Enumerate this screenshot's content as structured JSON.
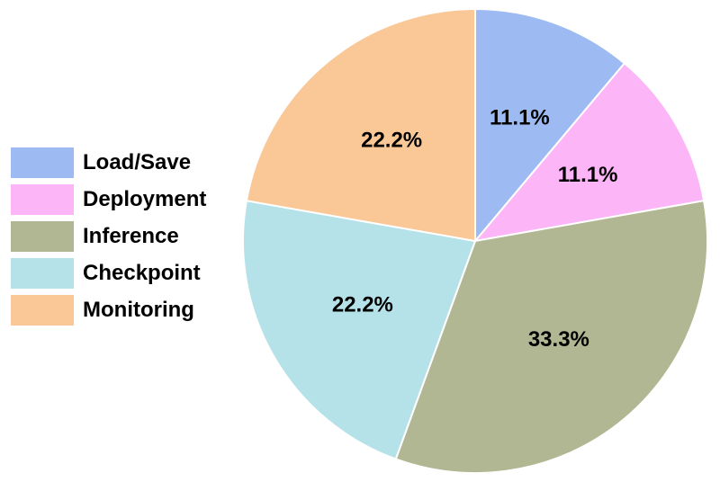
{
  "chart_data": {
    "type": "pie",
    "title": "",
    "categories": [
      "Load/Save",
      "Deployment",
      "Inference",
      "Checkpoint",
      "Monitoring"
    ],
    "values": [
      11.1,
      11.1,
      33.3,
      22.2,
      22.2
    ],
    "value_labels": [
      "11.1%",
      "11.1%",
      "33.3%",
      "22.2%",
      "22.2%"
    ],
    "colors": [
      "#9dbbf2",
      "#fcb5f7",
      "#b1b792",
      "#b5e2e8",
      "#fac797"
    ],
    "start_angle_deg": 90,
    "direction": "clockwise",
    "legend_placement": "left"
  }
}
